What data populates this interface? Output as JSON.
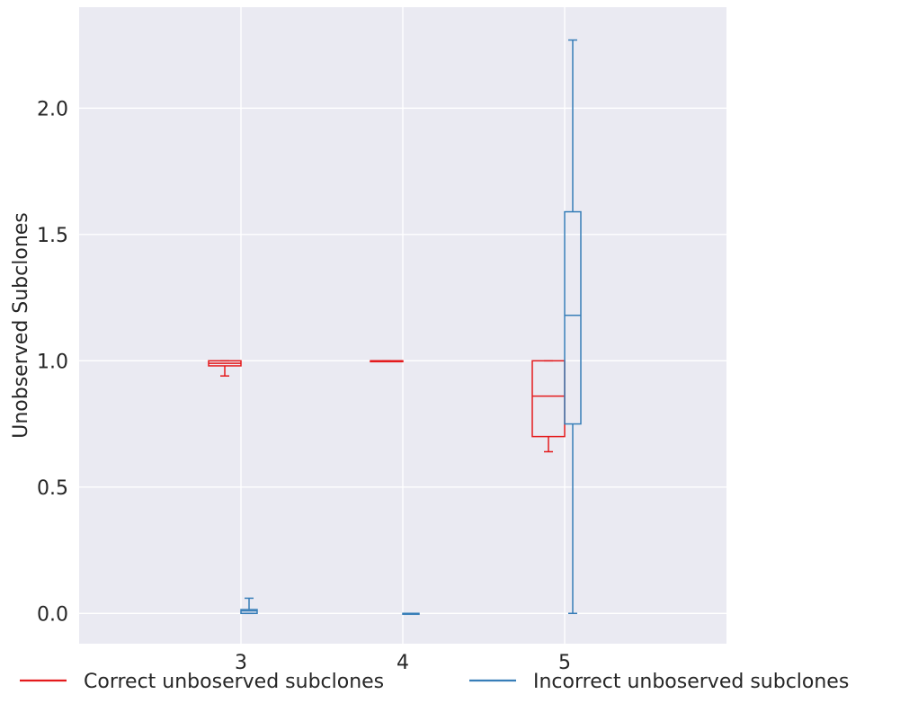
{
  "chart_data": {
    "type": "box",
    "title": "",
    "xlabel": "",
    "ylabel": "Unobserved Subclones",
    "categories": [
      "3",
      "4",
      "5"
    ],
    "y_ticks": [
      "0.0",
      "0.5",
      "1.0",
      "1.5",
      "2.0"
    ],
    "y_tick_values": [
      0,
      0.5,
      1.0,
      1.5,
      2.0
    ],
    "ylim": [
      -0.12,
      2.4
    ],
    "xlim": [
      2,
      6
    ],
    "grid": true,
    "legend_position": "bottom",
    "series": [
      {
        "name": "Correct unboserved subclones",
        "color": "#e41a1c",
        "boxes": [
          {
            "category": "3",
            "whisker_low": 0.94,
            "q1": 0.98,
            "median": 0.99,
            "q3": 1.0,
            "whisker_high": 1.0
          },
          {
            "category": "4",
            "whisker_low": 1.0,
            "q1": 1.0,
            "median": 1.0,
            "q3": 1.0,
            "whisker_high": 1.0
          },
          {
            "category": "5",
            "whisker_low": 0.64,
            "q1": 0.7,
            "median": 0.86,
            "q3": 1.0,
            "whisker_high": 1.0
          }
        ]
      },
      {
        "name": "Incorrect unboserved subclones",
        "color": "#377eb8",
        "boxes": [
          {
            "category": "3",
            "whisker_low": 0.0,
            "q1": 0.0,
            "median": 0.01,
            "q3": 0.015,
            "whisker_high": 0.06
          },
          {
            "category": "4",
            "whisker_low": 0.0,
            "q1": 0.0,
            "median": 0.0,
            "q3": 0.0,
            "whisker_high": 0.0
          },
          {
            "category": "5",
            "whisker_low": 0.0,
            "q1": 0.75,
            "median": 1.18,
            "q3": 1.59,
            "whisker_high": 2.27
          }
        ]
      }
    ],
    "background_color": "#eaeaf2",
    "grid_color": "#ffffff"
  }
}
